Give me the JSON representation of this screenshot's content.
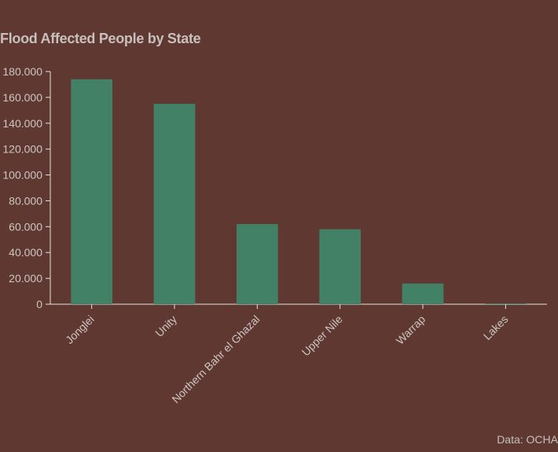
{
  "colors": {
    "background": "#5e3831",
    "bar": "#438166",
    "axis": "#e8e2e0",
    "text": "#cfc6c3"
  },
  "chart_data": {
    "type": "bar",
    "title": "Flood Affected People by State",
    "categories": [
      "Jonglei",
      "Unity",
      "Northern Bahr el Ghazal",
      "Upper Nile",
      "Warrap",
      "Lakes"
    ],
    "values": [
      174000,
      155000,
      62000,
      58000,
      16000,
      500
    ],
    "ylim": [
      0,
      180000
    ],
    "yticks": [
      0,
      20000,
      40000,
      60000,
      80000,
      100000,
      120000,
      140000,
      160000,
      180000
    ],
    "ytick_labels": [
      "0",
      "20.000",
      "40.000",
      "60.000",
      "80.000",
      "100.000",
      "120.000",
      "140.000",
      "160.000",
      "180.000"
    ],
    "xlabel": "",
    "ylabel": "",
    "grid": false,
    "source": "Data: OCHA"
  }
}
